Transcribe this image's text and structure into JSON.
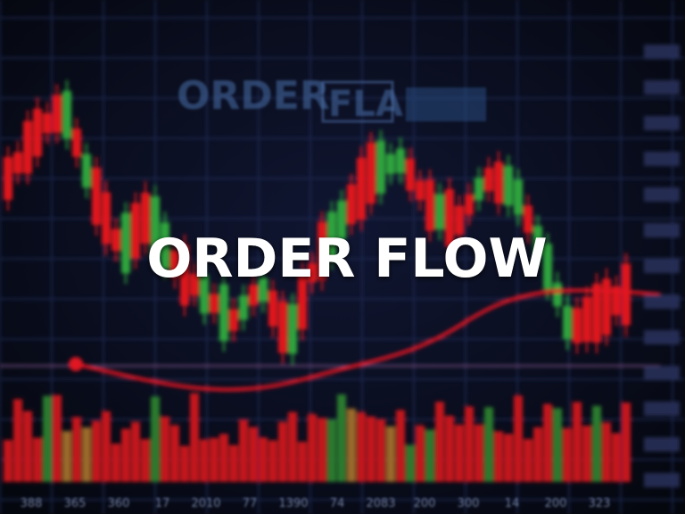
{
  "title": "ORDER FLOW",
  "background_texts": [
    "ORDER",
    "FLA"
  ],
  "axis_labels": [
    "388",
    "365",
    "360",
    "17",
    "2010",
    "77",
    "1390",
    "74",
    "2083",
    "200",
    "300",
    "14",
    "200",
    "323"
  ]
}
